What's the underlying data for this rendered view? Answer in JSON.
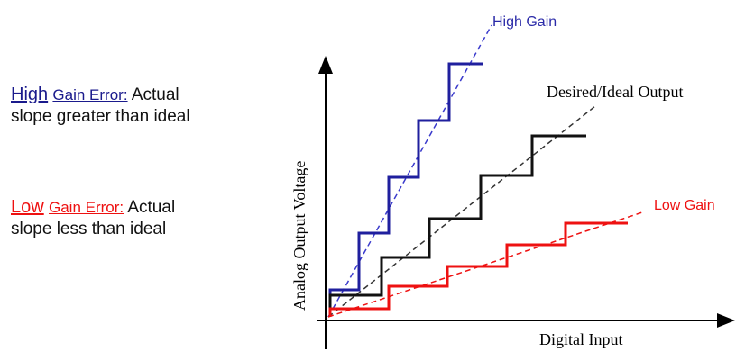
{
  "notes": {
    "high": {
      "keyword": "High",
      "term": "Gain Error:",
      "line1_rest": "Actual",
      "line2": "slope greater than ideal",
      "color": "#1a1a8c"
    },
    "low": {
      "keyword": "Low",
      "term": "Gain Error:",
      "line1_rest": "Actual",
      "line2": "slope less than ideal",
      "color": "#ee1111"
    }
  },
  "diagram": {
    "y_axis_label": "Analog  Output  Voltage",
    "x_axis_label": "Digital  Input",
    "labels": {
      "high_gain": "High Gain",
      "ideal": "Desired/Ideal  Output",
      "low_gain": "Low Gain"
    },
    "colors": {
      "high": "#1f1f9e",
      "ideal": "#111111",
      "low": "#ee1111"
    }
  }
}
